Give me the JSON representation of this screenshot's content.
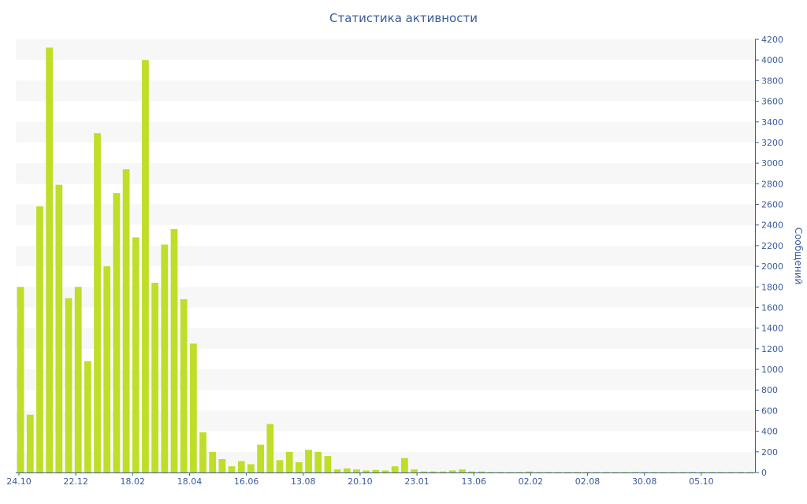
{
  "chart_data": {
    "type": "bar",
    "title": "Статистика активности",
    "xlabel": "",
    "ylabel": "Сообщений",
    "x_tick_labels": [
      "24.10",
      "22.12",
      "18.02",
      "18.04",
      "16.06",
      "13.08",
      "20.10",
      "23.01",
      "13.06",
      "02.02",
      "02.08",
      "30.08",
      "05.10"
    ],
    "ylim": [
      0,
      4200
    ],
    "y_ticks": [
      0,
      200,
      400,
      600,
      800,
      1000,
      1200,
      1400,
      1600,
      1800,
      2000,
      2200,
      2400,
      2600,
      2800,
      3000,
      3200,
      3400,
      3600,
      3800,
      4000,
      4200
    ],
    "y_axis_side": "right",
    "grid": "horizontal alternating bands",
    "bar_color": "#bede2a",
    "values": [
      1800,
      560,
      2580,
      4120,
      2790,
      1690,
      1800,
      1080,
      3290,
      2000,
      2710,
      2940,
      2280,
      4000,
      1840,
      2210,
      2360,
      1680,
      1250,
      390,
      200,
      130,
      60,
      110,
      80,
      270,
      470,
      120,
      200,
      100,
      220,
      200,
      160,
      30,
      40,
      30,
      20,
      25,
      20,
      60,
      140,
      30,
      10,
      10,
      10,
      20,
      30,
      10,
      10,
      5,
      5,
      5,
      5,
      10,
      5,
      5,
      5,
      5,
      5,
      5,
      5,
      5,
      5,
      5,
      5,
      5,
      5,
      5,
      5,
      5,
      5,
      5,
      5,
      5,
      5,
      5,
      5
    ]
  }
}
